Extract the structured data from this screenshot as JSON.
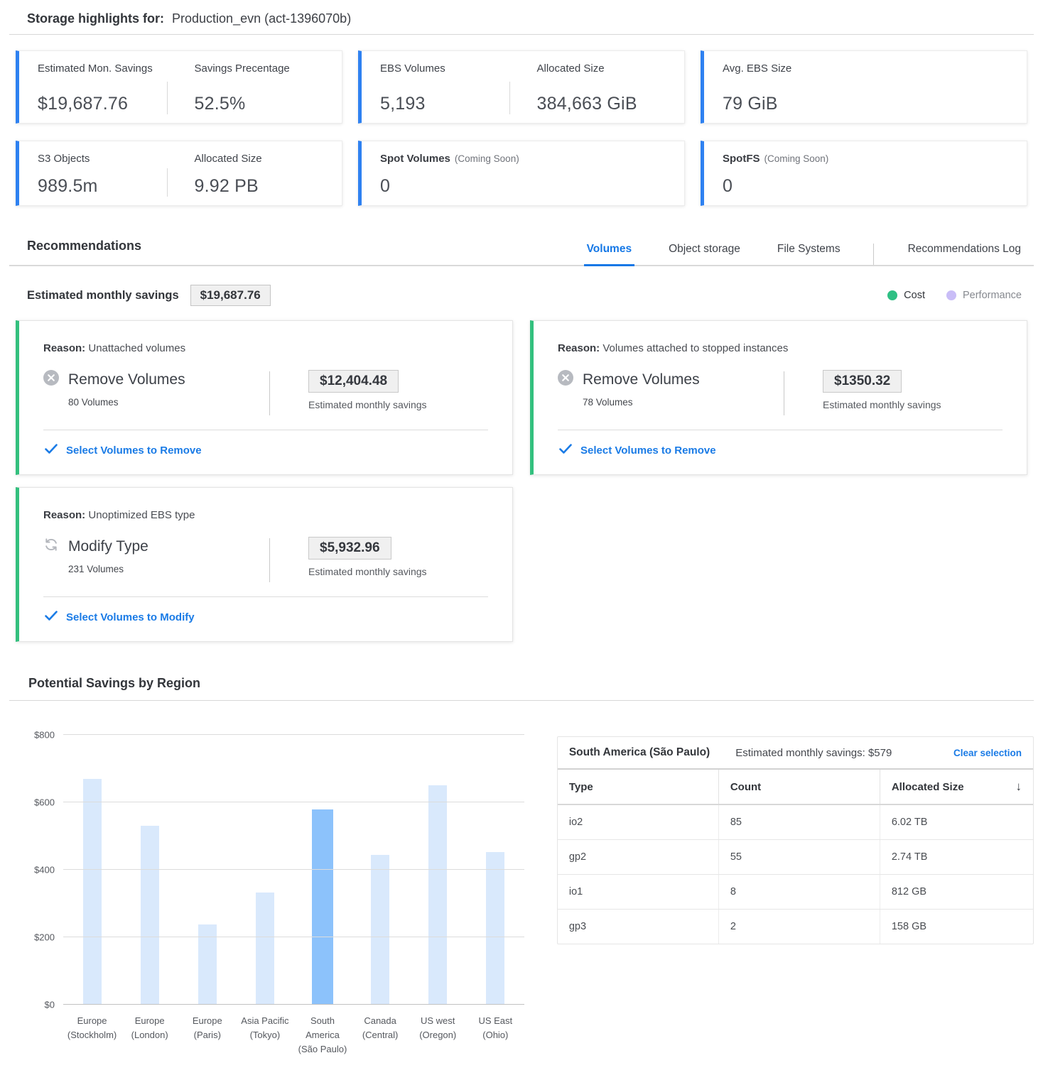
{
  "header": {
    "title_label": "Storage highlights for:",
    "title_value": "Production_evn (act-1396070b)"
  },
  "stat_cards": {
    "accent_color": "#2e81f1",
    "row1": [
      {
        "stats": [
          {
            "label": "Estimated Mon. Savings",
            "value": "$19,687.76"
          },
          {
            "label": "Savings Precentage",
            "value": "52.5%"
          }
        ]
      },
      {
        "stats": [
          {
            "label": "EBS Volumes",
            "value": "5,193"
          },
          {
            "label": "Allocated Size",
            "value": "384,663 GiB"
          }
        ]
      },
      {
        "stats": [
          {
            "label": "Avg. EBS Size",
            "value": "79 GiB"
          }
        ]
      }
    ],
    "row2": [
      {
        "stats": [
          {
            "label": "S3 Objects",
            "value": "989.5m"
          },
          {
            "label": "Allocated Size",
            "value": "9.92 PB"
          }
        ]
      },
      {
        "stats": [
          {
            "label": "Spot Volumes",
            "suffix": "(Coming Soon)",
            "value": "0"
          }
        ]
      },
      {
        "stats": [
          {
            "label": "SpotFS",
            "suffix": "(Coming Soon)",
            "value": "0"
          }
        ]
      }
    ]
  },
  "recommendations": {
    "section_title": "Recommendations",
    "tabs": [
      {
        "label": "Volumes",
        "active": true
      },
      {
        "label": "Object storage",
        "active": false
      },
      {
        "label": "File Systems",
        "active": false
      },
      {
        "label": "Recommendations Log",
        "active": false
      }
    ],
    "summary_label": "Estimated monthly savings",
    "summary_value": "$19,687.76",
    "legend": {
      "cost_label": "Cost",
      "cost_color": "#2fc084",
      "performance_label": "Performance",
      "performance_color": "#c9bdf7"
    },
    "cards": [
      {
        "reason_label": "Reason:",
        "reason": "Unattached volumes",
        "icon": "remove-circle-icon",
        "action": "Remove Volumes",
        "count": "80 Volumes",
        "savings": "$12,404.48",
        "savings_label": "Estimated monthly savings",
        "link": "Select Volumes to Remove"
      },
      {
        "reason_label": "Reason:",
        "reason": "Volumes attached to stopped instances",
        "icon": "remove-circle-icon",
        "action": "Remove Volumes",
        "count": "78 Volumes",
        "savings": "$1350.32",
        "savings_label": "Estimated monthly savings",
        "link": "Select Volumes to Remove"
      },
      {
        "reason_label": "Reason:",
        "reason": "Unoptimized EBS type",
        "icon": "refresh-icon",
        "action": "Modify Type",
        "count": "231 Volumes",
        "savings": "$5,932.96",
        "savings_label": "Estimated monthly savings",
        "link": "Select Volumes to Modify"
      }
    ],
    "accent_color": "#33c07e"
  },
  "region_section_title": "Potential Savings by Region",
  "chart_data": {
    "type": "bar",
    "title": "Potential Savings by Region",
    "categories": [
      "Europe (Stockholm)",
      "Europe (London)",
      "Europe (Paris)",
      "Asia Pacific (Tokyo)",
      "South America (São Paulo)",
      "Canada (Central)",
      "US west (Oregon)",
      "US East (Ohio)"
    ],
    "values": [
      670,
      530,
      237,
      333,
      579,
      445,
      650,
      453
    ],
    "selected_index": 4,
    "yticks": [
      0,
      200,
      400,
      600,
      800
    ],
    "ytick_prefix": "$",
    "ylim": [
      0,
      800
    ],
    "grid": true,
    "legend_position": "none",
    "bar_color": "#d9e9fc",
    "selected_bar_color": "#8cc2fb",
    "xlabel": "",
    "ylabel": ""
  },
  "region_table": {
    "title": "South America (São Paulo)",
    "subtitle": "Estimated monthly savings: $579",
    "clear_label": "Clear selection",
    "sort_icon": "↓",
    "columns": [
      "Type",
      "Count",
      "Allocated Size"
    ],
    "rows": [
      [
        "io2",
        "85",
        "6.02 TB"
      ],
      [
        "gp2",
        "55",
        "2.74 TB"
      ],
      [
        "io1",
        "8",
        "812 GB"
      ],
      [
        "gp3",
        "2",
        "158 GB"
      ]
    ]
  }
}
